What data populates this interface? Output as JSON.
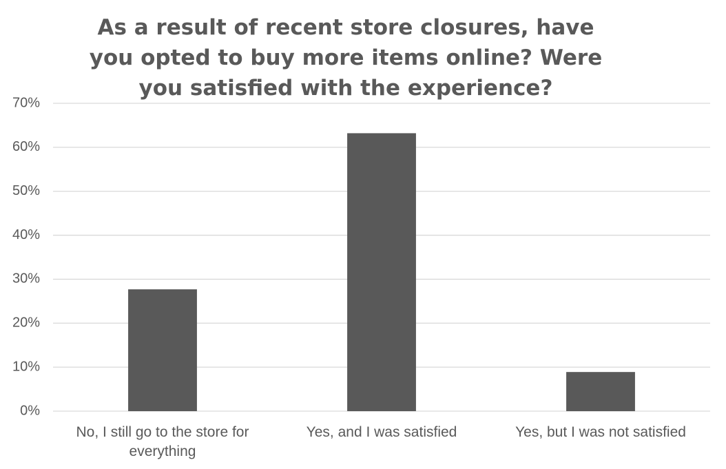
{
  "chart_data": {
    "type": "bar",
    "title": "As a result of recent store closures, have you opted to buy more items online? Were you satisfied with the experience?",
    "categories": [
      "No, I still go to the store for everything",
      "Yes, and I was satisfied",
      "Yes, but I was not satisfied"
    ],
    "values": [
      27.7,
      63.2,
      8.9
    ],
    "color": "#595959",
    "ylim": [
      0,
      70
    ],
    "yticks": [
      {
        "value": 0,
        "label": "0%"
      },
      {
        "value": 10,
        "label": "10%"
      },
      {
        "value": 20,
        "label": "20%"
      },
      {
        "value": 30,
        "label": "30%"
      },
      {
        "value": 40,
        "label": "40%"
      },
      {
        "value": 50,
        "label": "50%"
      },
      {
        "value": 60,
        "label": "60%"
      },
      {
        "value": 70,
        "label": "70%"
      }
    ],
    "grid": true
  }
}
